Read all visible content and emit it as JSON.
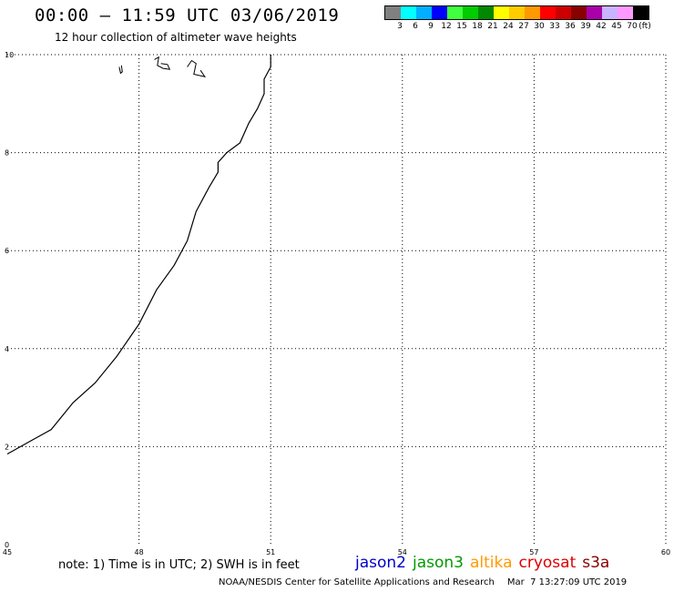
{
  "title": "00:00 – 11:59 UTC 03/06/2019",
  "subtitle": "12 hour collection of altimeter wave heights",
  "legend": {
    "colors": [
      "#808080",
      "#00ffff",
      "#00b0ff",
      "#0000ff",
      "#40ff40",
      "#00cc00",
      "#008800",
      "#ffff00",
      "#ffcc00",
      "#ff9900",
      "#ff0000",
      "#cc0000",
      "#880000",
      "#aa00aa",
      "#c8b4ff",
      "#ff99ff",
      "#000000"
    ],
    "labels": [
      "3",
      "6",
      "9",
      "12",
      "15",
      "18",
      "21",
      "24",
      "27",
      "30",
      "33",
      "36",
      "39",
      "42",
      "45",
      "70"
    ],
    "unit": "(ft)"
  },
  "map": {
    "x_ticks": [
      45,
      48,
      51,
      54,
      57,
      60
    ],
    "y_ticks": [
      0,
      2,
      4,
      6,
      8,
      10
    ],
    "coastline": [
      [
        45,
        1.85
      ],
      [
        45.5,
        2.1
      ],
      [
        46,
        2.35
      ],
      [
        46.5,
        2.9
      ],
      [
        47,
        3.3
      ],
      [
        47.5,
        3.85
      ],
      [
        48,
        4.5
      ],
      [
        48.4,
        5.2
      ],
      [
        48.8,
        5.7
      ],
      [
        49.1,
        6.2
      ],
      [
        49.3,
        6.8
      ],
      [
        49.6,
        7.3
      ],
      [
        49.8,
        7.6
      ],
      [
        49.8,
        7.8
      ],
      [
        50.0,
        8.0
      ],
      [
        50.3,
        8.2
      ],
      [
        50.5,
        8.6
      ],
      [
        50.7,
        8.9
      ],
      [
        50.85,
        9.2
      ],
      [
        50.85,
        9.5
      ],
      [
        51.0,
        9.75
      ],
      [
        51.0,
        10.0
      ]
    ],
    "islands": [
      [
        [
          47.55,
          9.75
        ],
        [
          47.58,
          9.62
        ],
        [
          47.62,
          9.65
        ],
        [
          47.6,
          9.78
        ]
      ],
      [
        [
          48.35,
          9.9
        ],
        [
          48.45,
          9.95
        ],
        [
          48.42,
          9.78
        ],
        [
          48.55,
          9.72
        ],
        [
          48.7,
          9.7
        ],
        [
          48.65,
          9.8
        ],
        [
          48.5,
          9.82
        ]
      ],
      [
        [
          49.1,
          9.75
        ],
        [
          49.2,
          9.88
        ],
        [
          49.3,
          9.82
        ],
        [
          49.25,
          9.6
        ],
        [
          49.5,
          9.55
        ],
        [
          49.4,
          9.68
        ]
      ]
    ]
  },
  "note": "note: 1) Time is in UTC; 2) SWH is in feet",
  "satellites": [
    {
      "name": "jason2",
      "color": "#0000cc"
    },
    {
      "name": "jason3",
      "color": "#009900"
    },
    {
      "name": "altika",
      "color": "#ff9900"
    },
    {
      "name": "cryosat",
      "color": "#dd0000"
    },
    {
      "name": "s3a",
      "color": "#880000"
    }
  ],
  "credit": "NOAA/NESDIS Center for Satellite Applications and Research",
  "timestamp": "Mar  7 13:27:09 UTC 2019"
}
